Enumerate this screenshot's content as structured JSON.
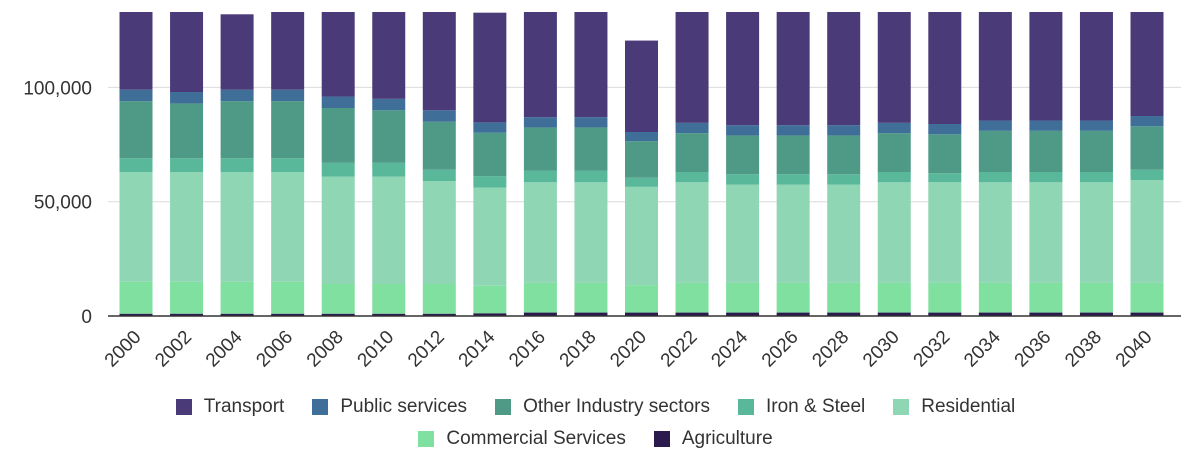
{
  "chart_data": {
    "type": "bar",
    "stacked": true,
    "title": "",
    "xlabel": "",
    "ylabel": "",
    "ylim": [
      0,
      133000
    ],
    "yticks": [
      0,
      50000,
      100000
    ],
    "ytick_labels": [
      "0",
      "50,000",
      "100,000"
    ],
    "grid": true,
    "legend_position": "bottom",
    "categories": [
      "2000",
      "2002",
      "2004",
      "2006",
      "2008",
      "2010",
      "2012",
      "2014",
      "2016",
      "2018",
      "2020",
      "2022",
      "2024",
      "2026",
      "2028",
      "2030",
      "2032",
      "2034",
      "2036",
      "2038",
      "2040"
    ],
    "series": [
      {
        "name": "Agriculture",
        "color": "#2a1a4e",
        "values": [
          1000,
          1000,
          1000,
          1000,
          1000,
          1000,
          1000,
          1200,
          1500,
          1500,
          1500,
          1500,
          1500,
          1500,
          1500,
          1500,
          1500,
          1500,
          1500,
          1500,
          1500
        ]
      },
      {
        "name": "Commercial Services",
        "color": "#7fe0a0",
        "values": [
          14000,
          14000,
          14000,
          14000,
          13000,
          13000,
          13000,
          12000,
          13000,
          13000,
          12000,
          13000,
          13000,
          13000,
          13000,
          13000,
          13000,
          13000,
          13000,
          13000,
          13000
        ]
      },
      {
        "name": "Residential",
        "color": "#8fd6b4",
        "values": [
          48000,
          48000,
          48000,
          48000,
          47000,
          47000,
          45000,
          43000,
          44000,
          44000,
          43000,
          44000,
          43000,
          43000,
          43000,
          44000,
          44000,
          44000,
          44000,
          44000,
          45000
        ]
      },
      {
        "name": "Iron & Steel",
        "color": "#5ab89a",
        "values": [
          6000,
          6000,
          6000,
          6000,
          6000,
          6000,
          5000,
          5000,
          5000,
          5000,
          4000,
          4500,
          4500,
          4500,
          4500,
          4500,
          4000,
          4500,
          4500,
          4500,
          4500
        ]
      },
      {
        "name": "Other Industry sectors",
        "color": "#4e9a86",
        "values": [
          25000,
          24000,
          25000,
          25000,
          24000,
          23000,
          21000,
          19000,
          19000,
          19000,
          16000,
          17000,
          17000,
          17000,
          17000,
          17000,
          17000,
          18000,
          18000,
          18000,
          19000
        ]
      },
      {
        "name": "Public services",
        "color": "#3f6f99",
        "values": [
          5000,
          5000,
          5000,
          5000,
          5000,
          5000,
          5000,
          4500,
          4500,
          4500,
          4000,
          4500,
          4500,
          4500,
          4500,
          4500,
          4500,
          4500,
          4500,
          4500,
          4500
        ]
      },
      {
        "name": "Transport",
        "color": "#4a3b78",
        "values": [
          34000,
          35000,
          33000,
          34000,
          37000,
          38000,
          43000,
          48000,
          48000,
          48000,
          40000,
          49000,
          50000,
          50000,
          50000,
          50000,
          51000,
          50000,
          49000,
          49000,
          47000
        ]
      }
    ],
    "legend_rows": [
      [
        "Transport",
        "Public services",
        "Other Industry sectors",
        "Iron & Steel",
        "Residential"
      ],
      [
        "Commercial Services",
        "Agriculture"
      ]
    ]
  }
}
